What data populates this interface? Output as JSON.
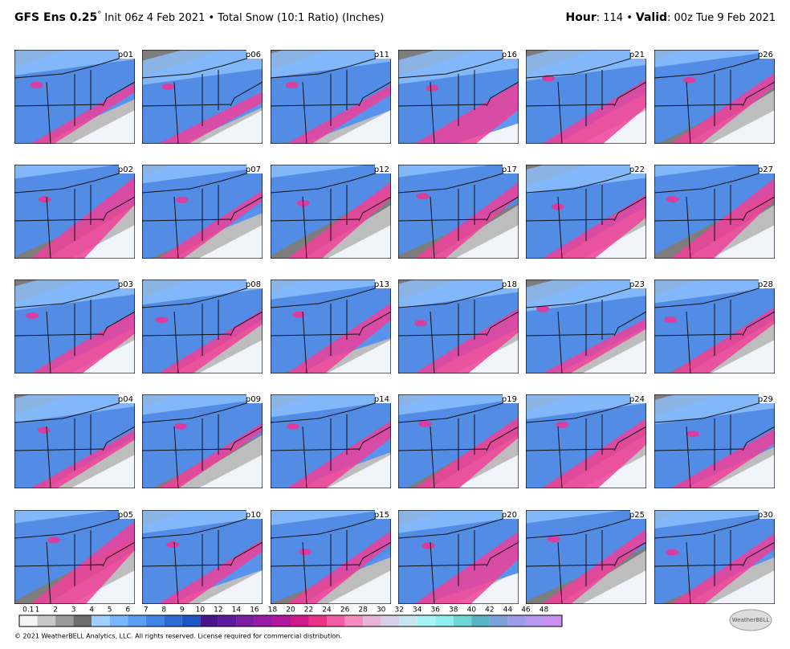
{
  "header": {
    "model": "GFS Ens 0.25",
    "degree": "°",
    "description": "Init 06z 4 Feb 2021 • Total Snow (10:1 Ratio) (Inches)",
    "hour_label": "Hour",
    "hour_value": ": 114 •",
    "valid_label": "Valid",
    "valid_value": ": 00z Tue 9 Feb 2021"
  },
  "panels": [
    "p01",
    "p02",
    "p03",
    "p04",
    "p05",
    "p06",
    "p07",
    "p08",
    "p09",
    "p10",
    "p11",
    "p12",
    "p13",
    "p14",
    "p15",
    "p16",
    "p17",
    "p18",
    "p19",
    "p20",
    "p21",
    "p22",
    "p23",
    "p24",
    "p25",
    "p26",
    "p27",
    "p28",
    "p29",
    "p30"
  ],
  "colorbar": {
    "ticks": [
      0.1,
      1,
      2,
      3,
      4,
      5,
      6,
      7,
      8,
      9,
      10,
      12,
      14,
      16,
      18,
      20,
      22,
      24,
      26,
      28,
      30,
      32,
      34,
      36,
      38,
      40,
      42,
      44,
      46,
      48
    ]
  },
  "footer": {
    "copyright": "© 2021 WeatherBELL Analytics, LLC. All rights reserved. License required for commercial distribution.",
    "logo": "WeatherBELL"
  }
}
